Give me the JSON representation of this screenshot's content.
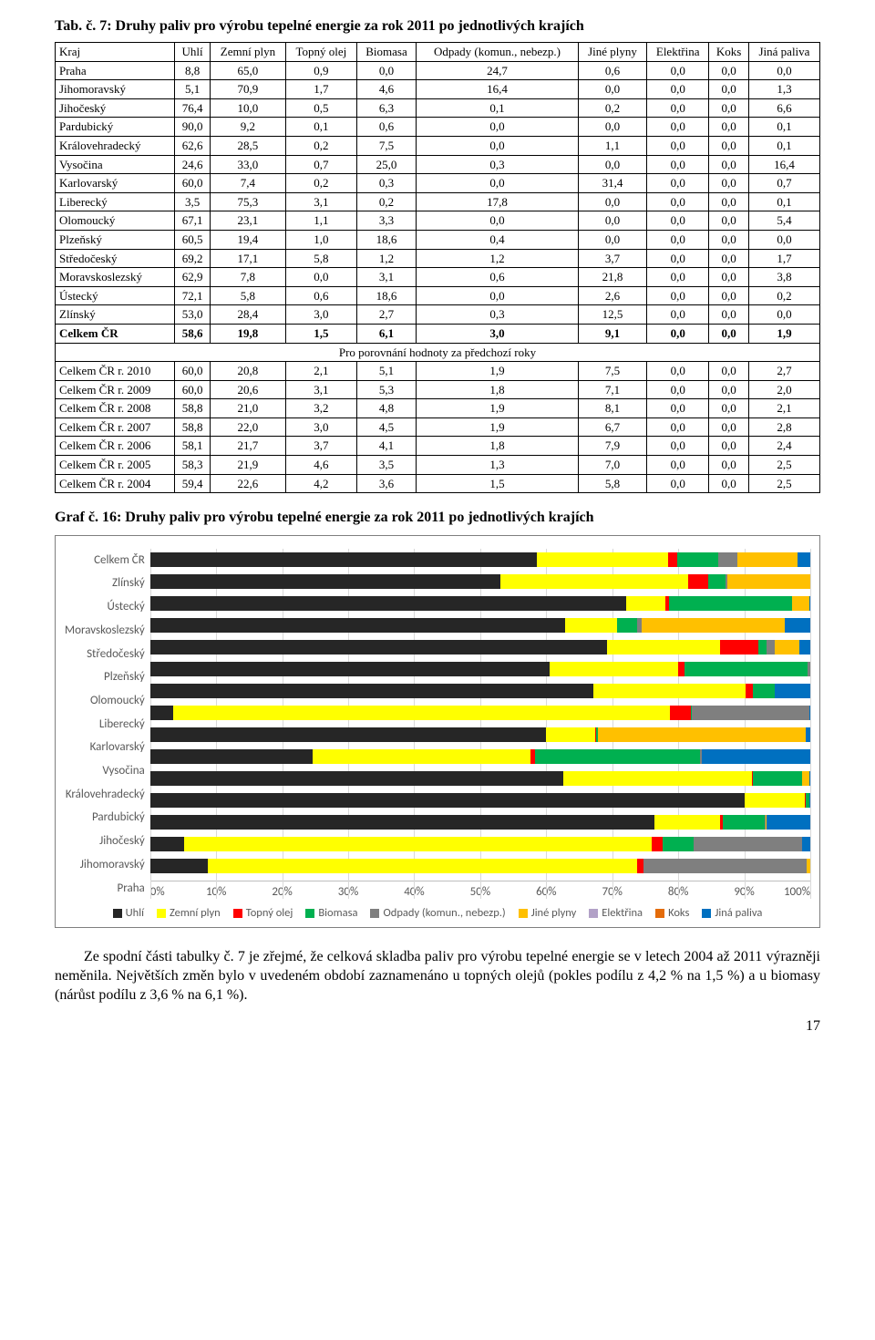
{
  "table_title": "Tab. č. 7: Druhy paliv pro výrobu tepelné energie za rok 2011 po jednotlivých krajích",
  "columns": [
    "Kraj",
    "Uhlí",
    "Zemní plyn",
    "Topný olej",
    "Biomasa",
    "Odpady (komun., nebezp.)",
    "Jiné plyny",
    "Elektřina",
    "Koks",
    "Jiná paliva"
  ],
  "rows": [
    [
      "Praha",
      "8,8",
      "65,0",
      "0,9",
      "0,0",
      "24,7",
      "0,6",
      "0,0",
      "0,0",
      "0,0"
    ],
    [
      "Jihomoravský",
      "5,1",
      "70,9",
      "1,7",
      "4,6",
      "16,4",
      "0,0",
      "0,0",
      "0,0",
      "1,3"
    ],
    [
      "Jihočeský",
      "76,4",
      "10,0",
      "0,5",
      "6,3",
      "0,1",
      "0,2",
      "0,0",
      "0,0",
      "6,6"
    ],
    [
      "Pardubický",
      "90,0",
      "9,2",
      "0,1",
      "0,6",
      "0,0",
      "0,0",
      "0,0",
      "0,0",
      "0,1"
    ],
    [
      "Královehradecký",
      "62,6",
      "28,5",
      "0,2",
      "7,5",
      "0,0",
      "1,1",
      "0,0",
      "0,0",
      "0,1"
    ],
    [
      "Vysočina",
      "24,6",
      "33,0",
      "0,7",
      "25,0",
      "0,3",
      "0,0",
      "0,0",
      "0,0",
      "16,4"
    ],
    [
      "Karlovarský",
      "60,0",
      "7,4",
      "0,2",
      "0,3",
      "0,0",
      "31,4",
      "0,0",
      "0,0",
      "0,7"
    ],
    [
      "Liberecký",
      "3,5",
      "75,3",
      "3,1",
      "0,2",
      "17,8",
      "0,0",
      "0,0",
      "0,0",
      "0,1"
    ],
    [
      "Olomoucký",
      "67,1",
      "23,1",
      "1,1",
      "3,3",
      "0,0",
      "0,0",
      "0,0",
      "0,0",
      "5,4"
    ],
    [
      "Plzeňský",
      "60,5",
      "19,4",
      "1,0",
      "18,6",
      "0,4",
      "0,0",
      "0,0",
      "0,0",
      "0,0"
    ],
    [
      "Středočeský",
      "69,2",
      "17,1",
      "5,8",
      "1,2",
      "1,2",
      "3,7",
      "0,0",
      "0,0",
      "1,7"
    ],
    [
      "Moravskoslezský",
      "62,9",
      "7,8",
      "0,0",
      "3,1",
      "0,6",
      "21,8",
      "0,0",
      "0,0",
      "3,8"
    ],
    [
      "Ústecký",
      "72,1",
      "5,8",
      "0,6",
      "18,6",
      "0,0",
      "2,6",
      "0,0",
      "0,0",
      "0,2"
    ],
    [
      "Zlínský",
      "53,0",
      "28,4",
      "3,0",
      "2,7",
      "0,3",
      "12,5",
      "0,0",
      "0,0",
      "0,0"
    ]
  ],
  "bold_row": [
    "Celkem ČR",
    "58,6",
    "19,8",
    "1,5",
    "6,1",
    "3,0",
    "9,1",
    "0,0",
    "0,0",
    "1,9"
  ],
  "section_label": "Pro porovnání hodnoty za předchozí roky",
  "history_rows": [
    [
      "Celkem ČR r. 2010",
      "60,0",
      "20,8",
      "2,1",
      "5,1",
      "1,9",
      "7,5",
      "0,0",
      "0,0",
      "2,7"
    ],
    [
      "Celkem ČR r. 2009",
      "60,0",
      "20,6",
      "3,1",
      "5,3",
      "1,8",
      "7,1",
      "0,0",
      "0,0",
      "2,0"
    ],
    [
      "Celkem ČR r. 2008",
      "58,8",
      "21,0",
      "3,2",
      "4,8",
      "1,9",
      "8,1",
      "0,0",
      "0,0",
      "2,1"
    ],
    [
      "Celkem ČR r. 2007",
      "58,8",
      "22,0",
      "3,0",
      "4,5",
      "1,9",
      "6,7",
      "0,0",
      "0,0",
      "2,8"
    ],
    [
      "Celkem ČR r. 2006",
      "58,1",
      "21,7",
      "3,7",
      "4,1",
      "1,8",
      "7,9",
      "0,0",
      "0,0",
      "2,4"
    ],
    [
      "Celkem ČR r. 2005",
      "58,3",
      "21,9",
      "4,6",
      "3,5",
      "1,3",
      "7,0",
      "0,0",
      "0,0",
      "2,5"
    ],
    [
      "Celkem ČR r. 2004",
      "59,4",
      "22,6",
      "4,2",
      "3,6",
      "1,5",
      "5,8",
      "0,0",
      "0,0",
      "2,5"
    ]
  ],
  "chart_title": "Graf č. 16: Druhy paliv pro výrobu tepelné energie za rok 2011 po jednotlivých krajích",
  "chart": {
    "categories": [
      "Celkem ČR",
      "Zlínský",
      "Ústecký",
      "Moravskoslezský",
      "Středočeský",
      "Plzeňský",
      "Olomoucký",
      "Liberecký",
      "Karlovarský",
      "Vysočina",
      "Královehradecký",
      "Pardubický",
      "Jihočeský",
      "Jihomoravský",
      "Praha"
    ],
    "series_labels": [
      "Uhlí",
      "Zemní plyn",
      "Topný olej",
      "Biomasa",
      "Odpady (komun., nebezp.)",
      "Jiné plyny",
      "Elektřina",
      "Koks",
      "Jiná paliva"
    ],
    "colors": [
      "#262626",
      "#ffff00",
      "#ff0000",
      "#00b050",
      "#7f7f7f",
      "#ffc000",
      "#b2a1c7",
      "#e46c0a",
      "#0070c0"
    ],
    "data": [
      [
        58.6,
        19.8,
        1.5,
        6.1,
        3.0,
        9.1,
        0.0,
        0.0,
        1.9
      ],
      [
        53.0,
        28.4,
        3.0,
        2.7,
        0.3,
        12.5,
        0.0,
        0.0,
        0.0
      ],
      [
        72.1,
        5.8,
        0.6,
        18.6,
        0.0,
        2.6,
        0.0,
        0.0,
        0.2
      ],
      [
        62.9,
        7.8,
        0.0,
        3.1,
        0.6,
        21.8,
        0.0,
        0.0,
        3.8
      ],
      [
        69.2,
        17.1,
        5.8,
        1.2,
        1.2,
        3.7,
        0.0,
        0.0,
        1.7
      ],
      [
        60.5,
        19.4,
        1.0,
        18.6,
        0.4,
        0.0,
        0.0,
        0.0,
        0.0
      ],
      [
        67.1,
        23.1,
        1.1,
        3.3,
        0.0,
        0.0,
        0.0,
        0.0,
        5.4
      ],
      [
        3.5,
        75.3,
        3.1,
        0.2,
        17.8,
        0.0,
        0.0,
        0.0,
        0.1
      ],
      [
        60.0,
        7.4,
        0.2,
        0.3,
        0.0,
        31.4,
        0.0,
        0.0,
        0.7
      ],
      [
        24.6,
        33.0,
        0.7,
        25.0,
        0.3,
        0.0,
        0.0,
        0.0,
        16.4
      ],
      [
        62.6,
        28.5,
        0.2,
        7.5,
        0.0,
        1.1,
        0.0,
        0.0,
        0.1
      ],
      [
        90.0,
        9.2,
        0.1,
        0.6,
        0.0,
        0.0,
        0.0,
        0.0,
        0.1
      ],
      [
        76.4,
        10.0,
        0.5,
        6.3,
        0.1,
        0.2,
        0.0,
        0.0,
        6.6
      ],
      [
        5.1,
        70.9,
        1.7,
        4.6,
        16.4,
        0.0,
        0.0,
        0.0,
        1.3
      ],
      [
        8.8,
        65.0,
        0.9,
        0.0,
        24.7,
        0.6,
        0.0,
        0.0,
        0.0
      ]
    ],
    "xticks": [
      "0%",
      "10%",
      "20%",
      "30%",
      "40%",
      "50%",
      "60%",
      "70%",
      "80%",
      "90%",
      "100%"
    ],
    "axis_color": "#d9d9d9",
    "label_fontsize": 13,
    "background": "#ffffff"
  },
  "body_text": "Ze spodní části tabulky č. 7 je zřejmé, že celková skladba paliv pro výrobu tepelné energie se v letech 2004 až 2011 výrazněji neměnila. Největších změn bylo v uvedeném období zaznamenáno u topných olejů (pokles podílu z 4,2 % na 1,5 %) a u biomasy (nárůst podílu z 3,6 % na 6,1 %).",
  "page_number": "17"
}
